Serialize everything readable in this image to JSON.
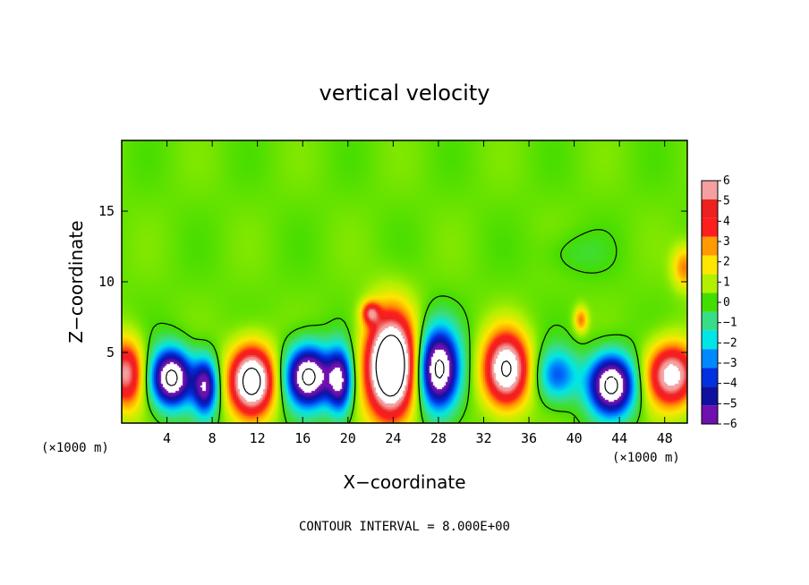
{
  "chart_data": {
    "type": "heatmap",
    "title": "vertical velocity",
    "xlabel": "X−coordinate",
    "ylabel": "Z−coordinate",
    "x_unit_label": "(×1000 m)",
    "x_unit_label_right": "(×1000 m)",
    "xlim": [
      0,
      50
    ],
    "ylim": [
      0,
      20
    ],
    "x_ticks": [
      4,
      8,
      12,
      16,
      20,
      24,
      28,
      32,
      36,
      40,
      44,
      48
    ],
    "y_ticks": [
      5,
      10,
      15
    ],
    "x_tick_labels": [
      "4",
      "8",
      "12",
      "16",
      "20",
      "24",
      "28",
      "32",
      "36",
      "40",
      "44",
      "48"
    ],
    "y_tick_labels": [
      "5",
      "10",
      "15"
    ],
    "colorbar": {
      "levels": [
        6,
        5,
        4,
        3,
        2,
        1,
        0,
        -1,
        -2,
        -3,
        -4,
        -5,
        -6
      ],
      "labels": [
        "6",
        "5",
        "4",
        "3",
        "2",
        "1",
        "0",
        "−1",
        "−2",
        "−3",
        "−4",
        "−5",
        "−6"
      ],
      "colors": [
        "#f4a0a0",
        "#ee2020",
        "#ff1e1e",
        "#ff9a00",
        "#ffe600",
        "#b2f000",
        "#44dd00",
        "#38dd88",
        "#00e6e6",
        "#0088ff",
        "#0030e0",
        "#1010a0",
        "#7010b0"
      ]
    },
    "cells": [
      {
        "x": 0.4,
        "z": 3.5,
        "w": 5.8,
        "sx": 1.6,
        "sz": 2.4
      },
      {
        "x": 4.4,
        "z": 3.2,
        "w": -9.0,
        "sx": 1.8,
        "sz": 2.0
      },
      {
        "x": 7.4,
        "z": 2.6,
        "w": -6.5,
        "sx": 1.1,
        "sz": 2.0
      },
      {
        "x": 11.5,
        "z": 3.0,
        "w": 9.0,
        "sx": 2.0,
        "sz": 2.4
      },
      {
        "x": 16.5,
        "z": 3.3,
        "w": -9.0,
        "sx": 2.0,
        "sz": 2.1
      },
      {
        "x": 19.3,
        "z": 3.0,
        "w": -6.5,
        "sx": 1.1,
        "sz": 2.3
      },
      {
        "x": 23.8,
        "z": 4.0,
        "w": 11.0,
        "sx": 2.2,
        "sz": 3.6
      },
      {
        "x": 28.0,
        "z": 3.8,
        "w": -9.0,
        "sx": 1.8,
        "sz": 2.8
      },
      {
        "x": 34.0,
        "z": 3.8,
        "w": 8.0,
        "sx": 2.0,
        "sz": 2.6
      },
      {
        "x": 38.5,
        "z": 3.4,
        "w": -3.8,
        "sx": 1.8,
        "sz": 1.8
      },
      {
        "x": 43.3,
        "z": 2.7,
        "w": -9.0,
        "sx": 2.0,
        "sz": 2.1
      },
      {
        "x": 48.6,
        "z": 3.4,
        "w": 7.0,
        "sx": 2.2,
        "sz": 2.2
      },
      {
        "x": 40.6,
        "z": 7.3,
        "w": 3.0,
        "sx": 0.6,
        "sz": 0.9
      },
      {
        "x": 49.8,
        "z": 11.0,
        "w": 3.0,
        "sx": 1.1,
        "sz": 1.5
      },
      {
        "x": 22.0,
        "z": 7.8,
        "w": 4.0,
        "sx": 0.8,
        "sz": 0.8
      },
      {
        "x": 40.0,
        "z": 12.0,
        "w": -0.6,
        "sx": 3.0,
        "sz": 1.5
      }
    ],
    "contour_interval_label": "CONTOUR INTERVAL = 8.000E+00"
  }
}
